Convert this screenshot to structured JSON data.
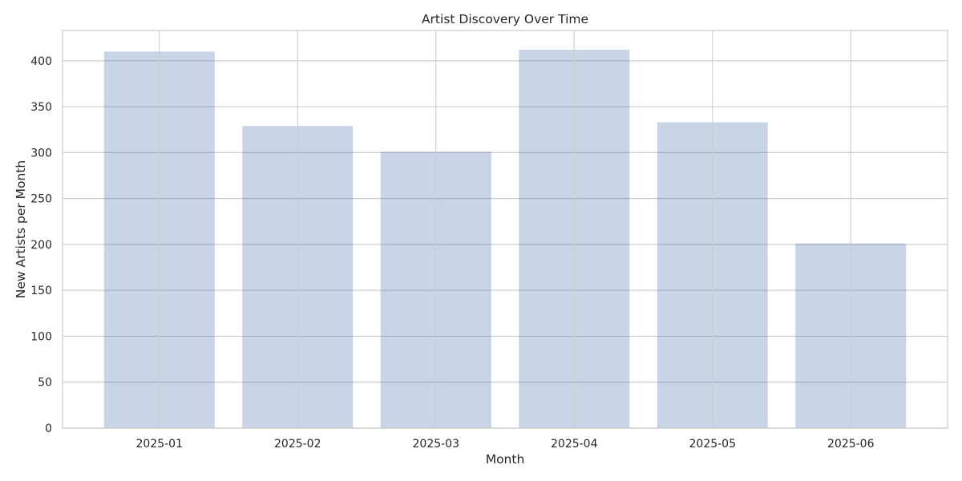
{
  "chart_data": {
    "type": "bar",
    "title": "Artist Discovery Over Time",
    "xlabel": "Month",
    "ylabel": "New Artists per Month",
    "categories": [
      "2025-01",
      "2025-02",
      "2025-03",
      "2025-04",
      "2025-05",
      "2025-06"
    ],
    "values": [
      410,
      329,
      301,
      412,
      333,
      201
    ],
    "ylim": [
      0,
      433
    ],
    "yticks": [
      0,
      50,
      100,
      150,
      200,
      250,
      300,
      350,
      400
    ],
    "grid": true,
    "legend": "none",
    "colors": {
      "bar": "#4c72b0",
      "grid": "#cccccc",
      "frame": "#cccccc",
      "text": "#262626"
    }
  }
}
